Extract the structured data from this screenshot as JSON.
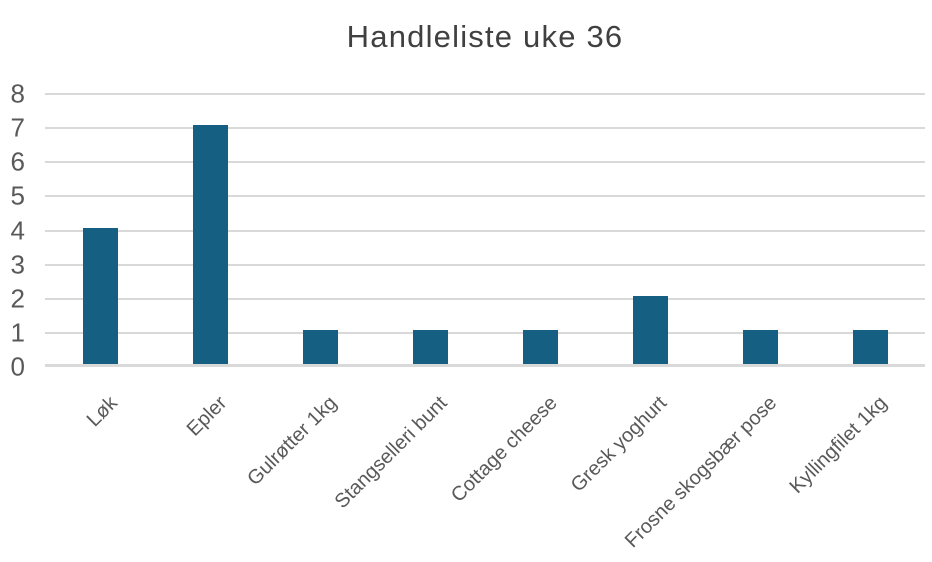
{
  "chart_data": {
    "type": "bar",
    "title": "Handleliste uke 36",
    "categories": [
      "Løk",
      "Epler",
      "Gulrøtter 1kg",
      "Stangselleri bunt",
      "Cottage cheese",
      "Gresk yoghurt",
      "Frosne skogsbær pose",
      "Kyllingfilet 1kg"
    ],
    "values": [
      4,
      7,
      1,
      1,
      1,
      2,
      1,
      1
    ],
    "xlabel": "",
    "ylabel": "",
    "ylim": [
      0,
      8
    ],
    "yticks": [
      0,
      1,
      2,
      3,
      4,
      5,
      6,
      7,
      8
    ],
    "grid": true,
    "legend": false,
    "colors": {
      "bar": "#156082",
      "gridline": "#D9D9D9",
      "axis_line": "#D9D9D9",
      "tick_label": "#595959",
      "title": "#404040",
      "background": "#FFFFFF"
    }
  }
}
